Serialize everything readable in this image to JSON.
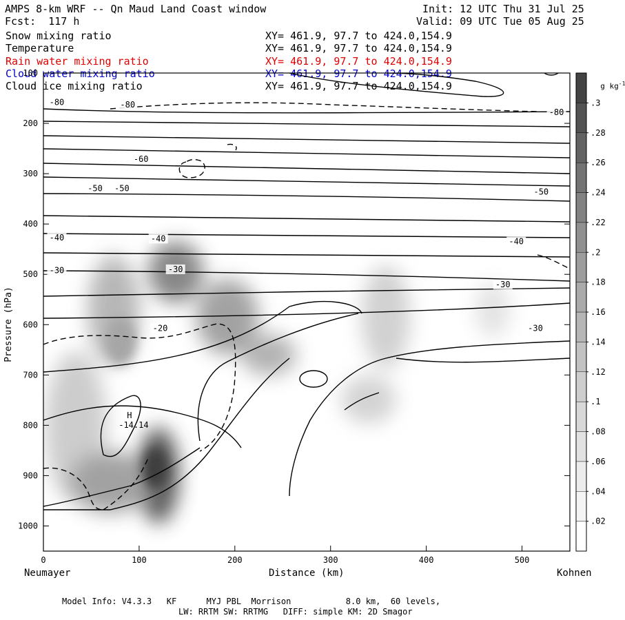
{
  "header": {
    "title": "AMPS 8-km WRF -- Qn Maud Land Coast window",
    "init": "Init: 12 UTC Thu 31 Jul 25",
    "fcst": "Fcst:  117 h",
    "valid": "Valid: 09 UTC Tue 05 Aug 25"
  },
  "fields": [
    {
      "name": "Snow mixing ratio",
      "xy": "XY= 461.9, 97.7 to 424.0,154.9",
      "color": "#000000"
    },
    {
      "name": "Temperature",
      "xy": "XY= 461.9, 97.7 to 424.0,154.9",
      "color": "#000000"
    },
    {
      "name": "Rain water mixing ratio",
      "xy": "XY= 461.9, 97.7 to 424.0,154.9",
      "color": "#e00000"
    },
    {
      "name": "Cloud water mixing ratio",
      "xy": "XY= 461.9, 97.7 to 424.0,154.9",
      "color": "#0000cc"
    },
    {
      "name": "Cloud ice mixing ratio",
      "xy": "XY= 461.9, 97.7 to 424.0,154.9",
      "color": "#000000"
    }
  ],
  "footer": {
    "line1": "Model Info: V4.3.3   KF      MYJ PBL  Morrison           8.0 km,  60 levels,",
    "line2": "LW: RRTM SW: RRTMG   DIFF: simple KM: 2D Smagor"
  },
  "chart_data": {
    "type": "cross-section",
    "xlabel": "Distance (km)",
    "ylabel": "Pressure (hPa)",
    "x_left_label": "Neumayer",
    "x_right_label": "Kohnen",
    "xlim": [
      0,
      550
    ],
    "ylim": [
      1050,
      100
    ],
    "x_ticks": [
      0,
      100,
      200,
      300,
      400,
      500
    ],
    "y_ticks": [
      100,
      200,
      300,
      400,
      500,
      600,
      700,
      800,
      900,
      1000
    ],
    "colorbar": {
      "unit": "g kg",
      "unit_sup": "-1",
      "range": [
        0,
        0.32
      ],
      "labels": [
        ".02",
        ".04",
        ".06",
        ".08",
        ".1",
        ".12",
        ".14",
        ".16",
        ".18",
        ".2",
        ".22",
        ".24",
        ".26",
        ".28",
        ".3"
      ],
      "colors": [
        "#ffffff",
        "#f4f4f4",
        "#ececec",
        "#e2e2e2",
        "#d8d8d8",
        "#cecece",
        "#c2c2c2",
        "#b6b6b6",
        "#aaaaaa",
        "#9d9d9d",
        "#909090",
        "#828282",
        "#737373",
        "#636363",
        "#535353",
        "#434343"
      ]
    },
    "temperature_labels": [
      {
        "text": "-80",
        "x": 14,
        "p": 158
      },
      {
        "text": "-80",
        "x": 88,
        "p": 163
      },
      {
        "text": "-80",
        "x": 536,
        "p": 178
      },
      {
        "text": "-60",
        "x": 102,
        "p": 271
      },
      {
        "text": "-50",
        "x": 54,
        "p": 329
      },
      {
        "text": "-50",
        "x": 82,
        "p": 329
      },
      {
        "text": "-50",
        "x": 520,
        "p": 336
      },
      {
        "text": "-40",
        "x": 14,
        "p": 427
      },
      {
        "text": "-40",
        "x": 120,
        "p": 429
      },
      {
        "text": "-40",
        "x": 494,
        "p": 435
      },
      {
        "text": "-30",
        "x": 14,
        "p": 492
      },
      {
        "text": "-30",
        "x": 138,
        "p": 490
      },
      {
        "text": "-30",
        "x": 480,
        "p": 520
      },
      {
        "text": "-30",
        "x": 514,
        "p": 607
      },
      {
        "text": "-20",
        "x": 122,
        "p": 607
      }
    ],
    "high": {
      "label": "H",
      "value": "-14.14",
      "x": 70,
      "p": 790
    }
  }
}
